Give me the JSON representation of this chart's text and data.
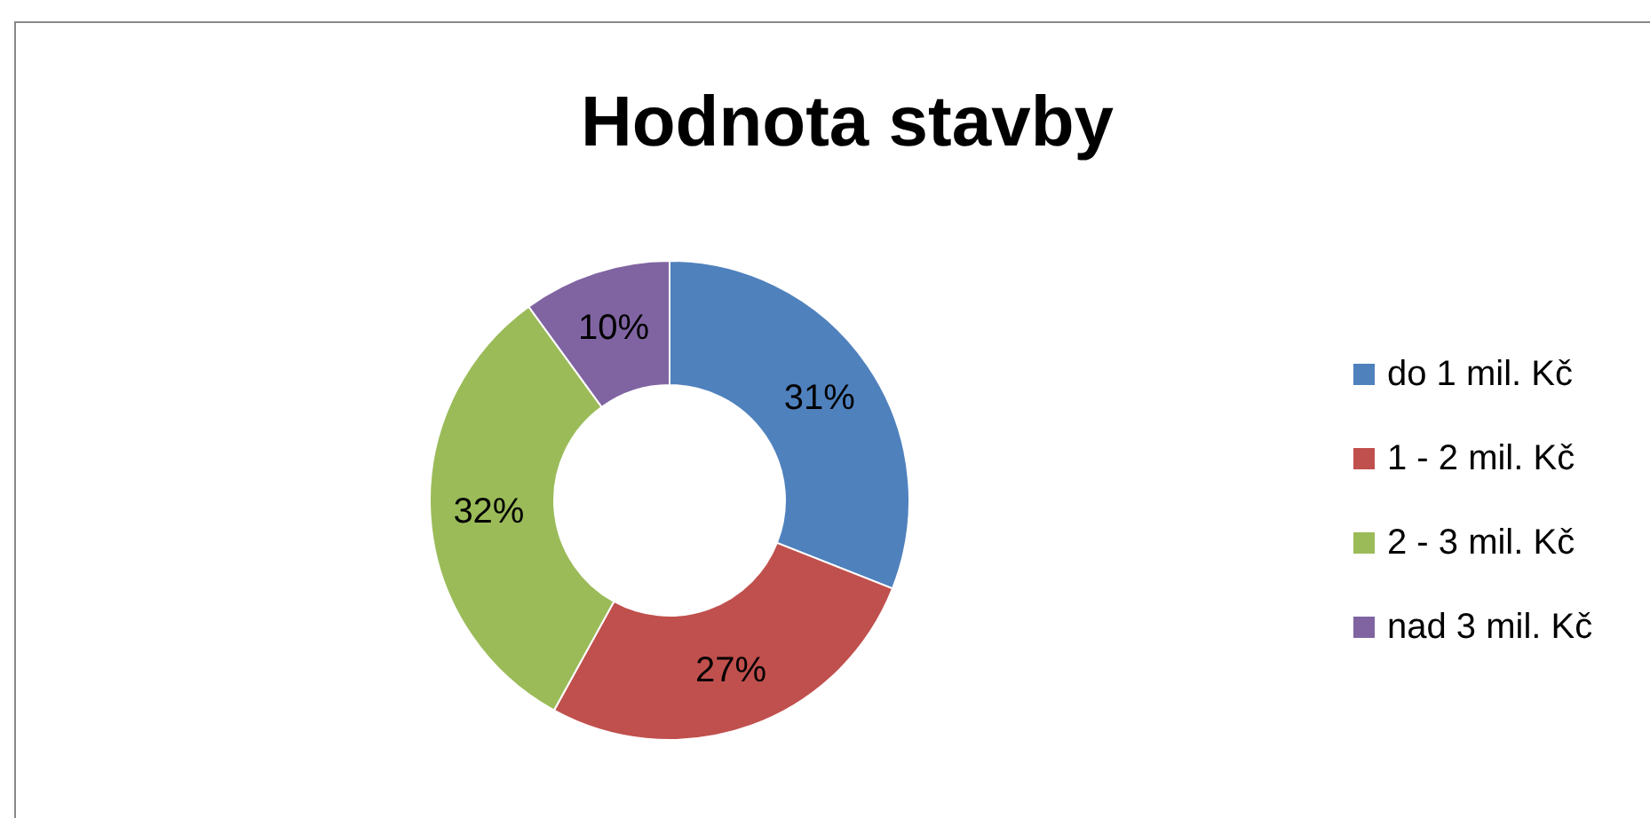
{
  "chart_data": {
    "type": "donut",
    "title": "Hodnota stavby",
    "categories": [
      "do 1 mil. Kč",
      "1 - 2 mil. Kč",
      "2 - 3 mil. Kč",
      "nad 3 mil. Kč"
    ],
    "values": [
      31,
      27,
      32,
      10
    ],
    "colors": [
      "#4f81bd",
      "#c0504d",
      "#9bbb59",
      "#8064a2"
    ],
    "value_labels": [
      "31%",
      "27%",
      "32%",
      "10%"
    ],
    "legend": "right"
  }
}
